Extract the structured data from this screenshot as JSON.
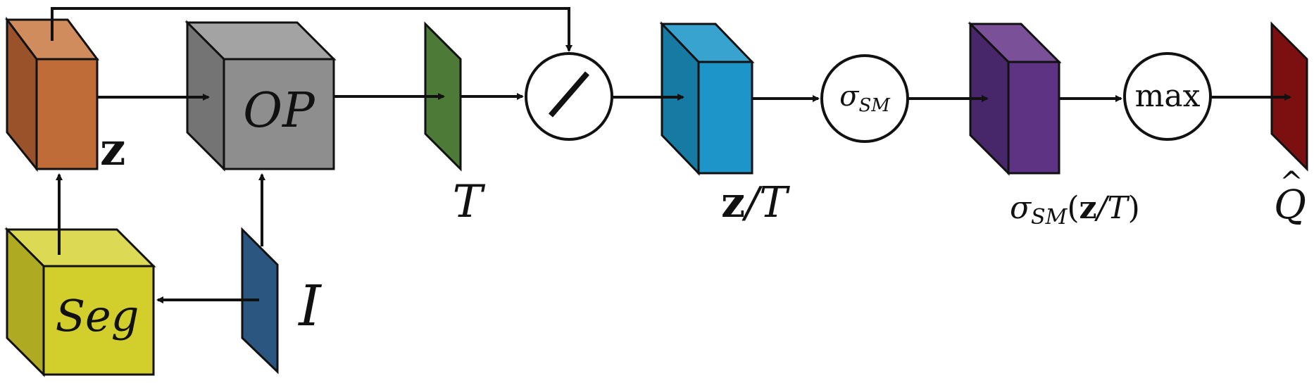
{
  "nodes": {
    "z_block": {
      "label": "z",
      "front": "#c06c38",
      "side": "#9a522a",
      "top": "#d08c5c"
    },
    "op_block": {
      "label": "OP",
      "front": "#8e8e8e",
      "side": "#747474",
      "top": "#a3a3a3"
    },
    "seg_block": {
      "label": "Seg",
      "front": "#d2cf2c",
      "side": "#aeab22",
      "top": "#dcd955"
    },
    "input_plane": {
      "label": "I",
      "color": "#2a5680"
    },
    "temperature_plane": {
      "label": "T",
      "color": "#4d7a36"
    },
    "divide_op": {
      "symbol": "/"
    },
    "scaled_block": {
      "label_bold": "z",
      "label_rest": "/T",
      "front": "#1e95c8",
      "side": "#177aa3",
      "top": "#38a3cf"
    },
    "softmax_op": {
      "symbol": "σ",
      "subscript": "SM"
    },
    "softmax_block": {
      "label_sigma": "σ",
      "label_sub": "SM",
      "label_paren_open": "(",
      "label_bold": "z",
      "label_rest": "/T",
      "label_paren_close": ")",
      "front": "#5e3384",
      "side": "#48266a",
      "top": "#7a5198"
    },
    "max_op": {
      "label": "max"
    },
    "output_plane": {
      "label": "Q",
      "hat": "^",
      "color": "#7c0f0f"
    }
  }
}
